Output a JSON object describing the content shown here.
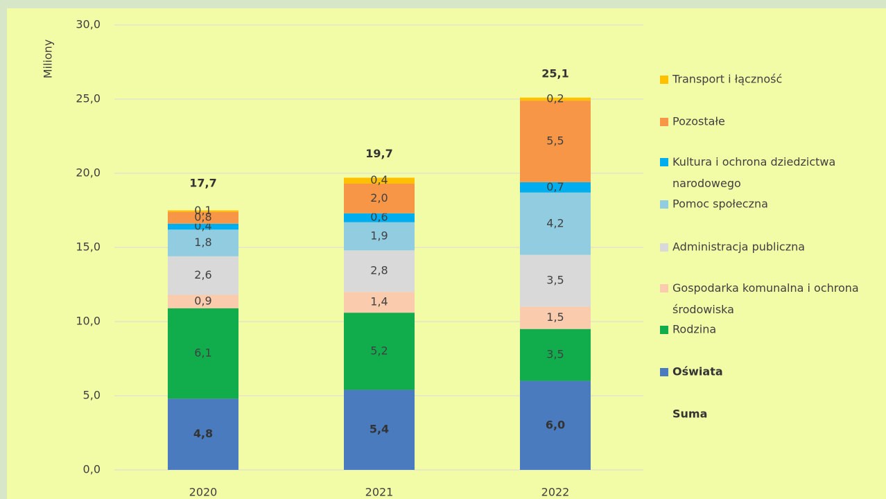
{
  "chart_data": {
    "type": "stacked_bar",
    "y_label": "Miliony",
    "categories": [
      "2020",
      "2021",
      "2022"
    ],
    "ylim": [
      0,
      30
    ],
    "yticks": [
      {
        "value": 0,
        "label": "0,0"
      },
      {
        "value": 5,
        "label": "5,0"
      },
      {
        "value": 10,
        "label": "10,0"
      },
      {
        "value": 15,
        "label": "15,0"
      },
      {
        "value": 20,
        "label": "20,0"
      },
      {
        "value": 25,
        "label": "25,0"
      },
      {
        "value": 30,
        "label": "30,0"
      }
    ],
    "grid": true,
    "legend": "right",
    "series": [
      {
        "name": "Oświata",
        "color": "#4a7bbf",
        "values": [
          4.8,
          5.4,
          6.0
        ],
        "value_labels": [
          "4,8",
          "5,4",
          "6,0"
        ]
      },
      {
        "name": "Rodzina",
        "color": "#11ad4d",
        "values": [
          6.1,
          5.2,
          3.5
        ],
        "value_labels": [
          "6,1",
          "5,2",
          "3,5"
        ]
      },
      {
        "name": "Gospodarka komunalna i ochrona środowiska",
        "color": "#fbcbad",
        "values": [
          0.9,
          1.4,
          1.5
        ],
        "value_labels": [
          "0,9",
          "1,4",
          "1,5"
        ]
      },
      {
        "name": "Administracja publiczna",
        "color": "#d9d9d9",
        "values": [
          2.6,
          2.8,
          3.5
        ],
        "value_labels": [
          "2,6",
          "2,8",
          "3,5"
        ]
      },
      {
        "name": "Pomoc społeczna",
        "color": "#92cce0",
        "values": [
          1.8,
          1.9,
          4.2
        ],
        "value_labels": [
          "1,8",
          "1,9",
          "4,2"
        ]
      },
      {
        "name": "Kultura i ochrona dziedzictwa narodowego",
        "color": "#00aeef",
        "values": [
          0.4,
          0.6,
          0.7
        ],
        "value_labels": [
          "0,4",
          "0,6",
          "0,7"
        ]
      },
      {
        "name": "Pozostałe",
        "color": "#f79646",
        "values": [
          0.8,
          2.0,
          5.5
        ],
        "value_labels": [
          "0,8",
          "2,0",
          "5,5"
        ]
      },
      {
        "name": "Transport i łączność",
        "color": "#ffc000",
        "values": [
          0.1,
          0.4,
          0.2
        ],
        "value_labels": [
          "0,1",
          "0,4",
          "0,2"
        ]
      }
    ],
    "totals": {
      "name": "Suma",
      "values": [
        17.7,
        19.7,
        25.1
      ],
      "value_labels": [
        "17,7",
        "19,7",
        "25,1"
      ]
    }
  }
}
